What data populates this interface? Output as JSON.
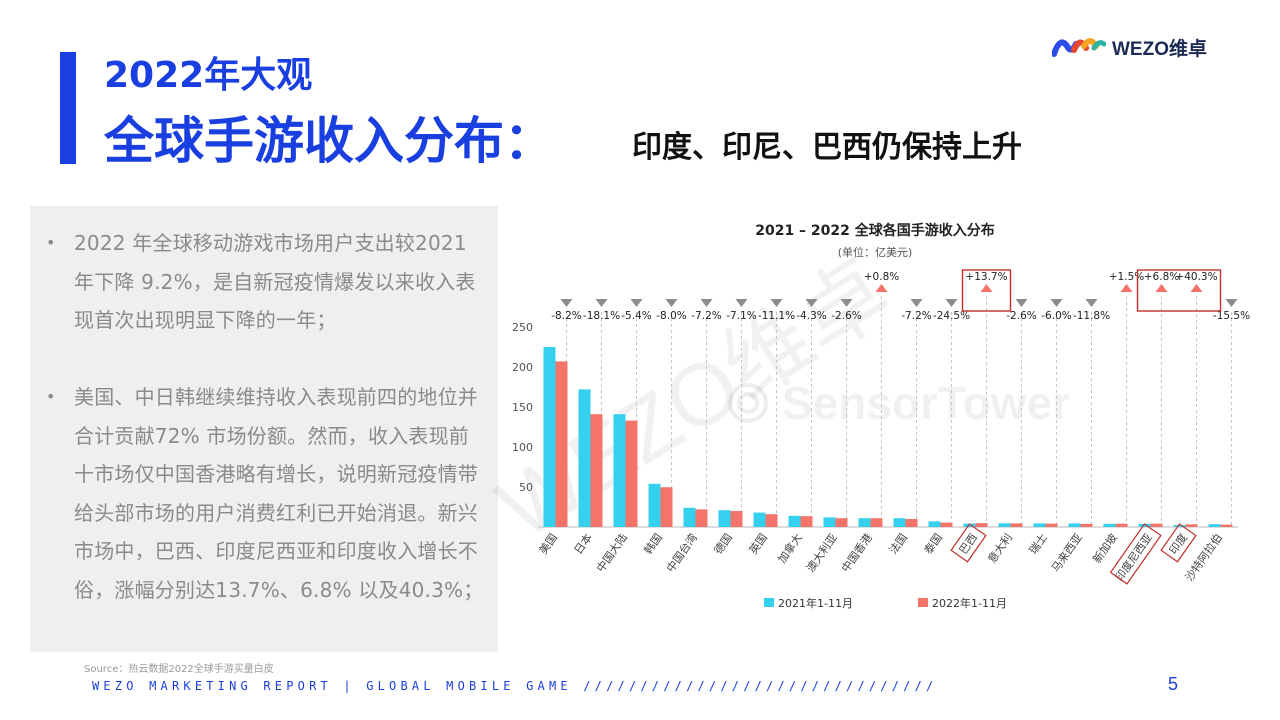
{
  "header": {
    "year_title": "2022年大观",
    "main_title": "全球手游收入分布：",
    "sub_title": "印度、印尼、巴西仍保持上升"
  },
  "logo": {
    "text": "WEZO维卓",
    "colors": [
      "#2b4de8",
      "#e6452e",
      "#f5a623",
      "#27b4a0"
    ]
  },
  "bullets": [
    "2022 年全球移动游戏市场用户支出较2021年下降 9.2%，是自新冠疫情爆发以来收入表现首次出现明显下降的一年；",
    "美国、中日韩继续维持收入表现前四的地位并合计贡献72% 市场份额。然而，收入表现前十市场仅中国香港略有增长，说明新冠疫情带给头部市场的用户消费红利已开始消退。新兴市场中，巴西、印度尼西亚和印度收入增长不俗，涨幅分别达13.7%、6.8% 以及40.3%；"
  ],
  "source": "Source：热云数据2022全球手游买量白皮",
  "footer": "WEZO MARKETING REPORT | GLOBAL MOBILE GAME ///////////////////////////////",
  "page_number": "5",
  "watermark": {
    "main": "WEZO维卓",
    "brand": "SensorTower"
  },
  "chart_data": {
    "type": "bar",
    "title": "2021 – 2022 全球各国手游收入分布",
    "subtitle": "(单位：亿美元)",
    "categories": [
      "美国",
      "日本",
      "中国大陆",
      "韩国",
      "中国台湾",
      "德国",
      "英国",
      "加拿大",
      "澳大利亚",
      "中国香港",
      "法国",
      "泰国",
      "巴西",
      "意大利",
      "瑞士",
      "马来西亚",
      "新加坡",
      "印度尼西亚",
      "印度",
      "沙特阿拉伯"
    ],
    "series": [
      {
        "name": "2021年1-11月",
        "color": "#35d0ee",
        "values": [
          225,
          172,
          141,
          54,
          24,
          21,
          18,
          14,
          12,
          11,
          11,
          7,
          4.2,
          4.6,
          4.5,
          4.4,
          4,
          3.9,
          2.4,
          3.5
        ]
      },
      {
        "name": "2022年1-11月",
        "color": "#f47469",
        "values": [
          207,
          141,
          133,
          49.7,
          22,
          20,
          16,
          13.5,
          11,
          11,
          10,
          5.5,
          4.8,
          4.5,
          4.2,
          3.9,
          4.1,
          4.2,
          3.4,
          3
        ]
      }
    ],
    "changes": [
      "-8.2%",
      "-18.1%",
      "-5.4%",
      "-8.0%",
      "-7.2%",
      "-7.1%",
      "-11.1%",
      "-4.3%",
      "-2.6%",
      "+0.8%",
      "-7.2%",
      "-24.5%",
      "+13.7%",
      "-2.6%",
      "-6.0%",
      "-11.8%",
      "+1.5%",
      "+6.8%",
      "+40.3%",
      "-15.5%"
    ],
    "highlighted": [
      "巴西",
      "印度尼西亚",
      "印度"
    ],
    "ylim": [
      0,
      250
    ],
    "yticks": [
      50,
      100,
      150,
      200,
      250
    ],
    "legend_position": "bottom",
    "grid": false,
    "up_color": "#f47469",
    "down_color": "#8c8c8c",
    "highlight_color": "#c0302a"
  }
}
